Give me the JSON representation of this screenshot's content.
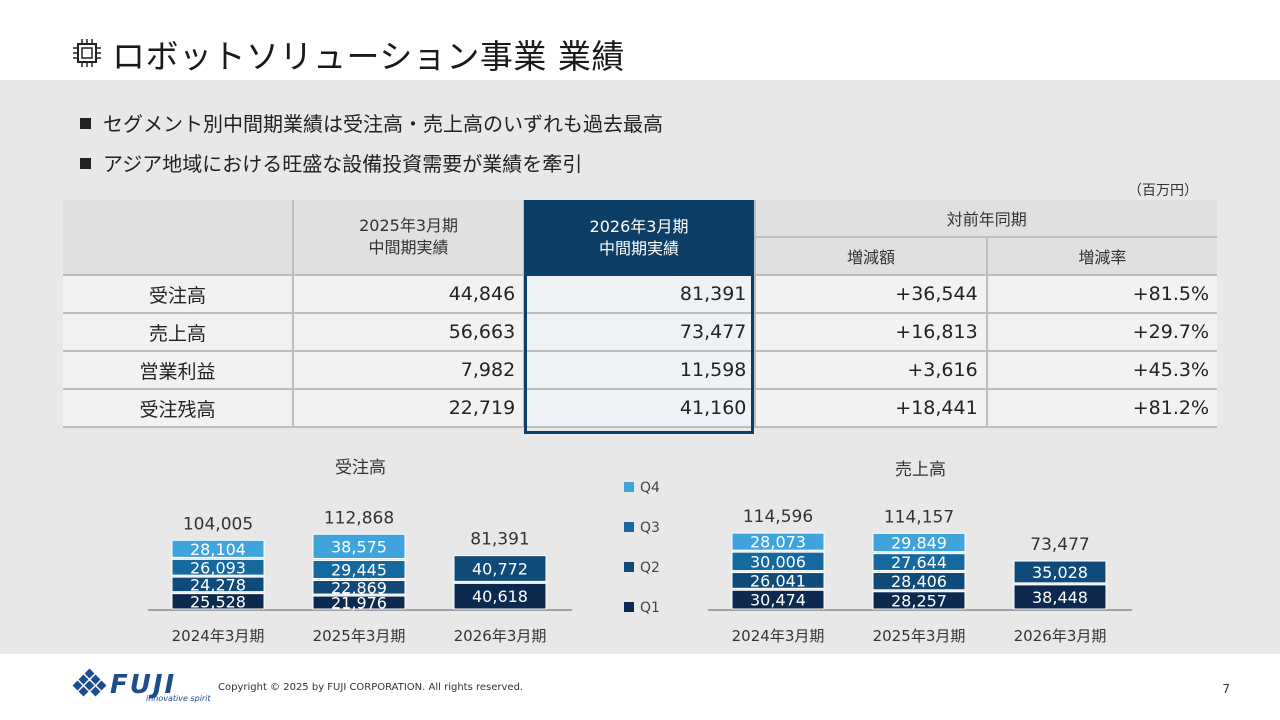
{
  "title": "ロボットソリューション事業 業績",
  "bullets": [
    "セグメント別中間期業績は受注高・売上高のいずれも過去最高",
    "アジア地域における旺盛な設備投資需要が業績を牽引"
  ],
  "unit": "（百万円）",
  "table": {
    "col_prev_line1": "2025年3月期",
    "col_prev_line2": "中間期実績",
    "col_curr_line1": "2026年3月期",
    "col_curr_line2": "中間期実績",
    "col_yoy": "対前年同期",
    "col_diff": "増減額",
    "col_rate": "増減率",
    "rows": [
      {
        "label": "受注高",
        "prev": "44,846",
        "curr": "81,391",
        "diff": "+36,544",
        "rate": "+81.5%"
      },
      {
        "label": "売上高",
        "prev": "56,663",
        "curr": "73,477",
        "diff": "+16,813",
        "rate": "+29.7%"
      },
      {
        "label": "営業利益",
        "prev": "7,982",
        "curr": "11,598",
        "diff": "+3,616",
        "rate": "+45.3%"
      },
      {
        "label": "受注残高",
        "prev": "22,719",
        "curr": "41,160",
        "diff": "+18,441",
        "rate": "+81.2%"
      }
    ]
  },
  "colors": {
    "Q1": "#0c2a4f",
    "Q2": "#0f4a78",
    "Q3": "#15699e",
    "Q4": "#3fa3dc",
    "highlight": "#0c3e66"
  },
  "chart_data": [
    {
      "type": "bar",
      "stacked": true,
      "title": "受注高",
      "categories": [
        "2024年3月期",
        "2025年3月期",
        "2026年3月期"
      ],
      "series": [
        {
          "name": "Q1",
          "values": [
            25528,
            21976,
            40618
          ]
        },
        {
          "name": "Q2",
          "values": [
            24278,
            22869,
            40772
          ]
        },
        {
          "name": "Q3",
          "values": [
            26093,
            29445,
            null
          ]
        },
        {
          "name": "Q4",
          "values": [
            28104,
            38575,
            null
          ]
        }
      ],
      "totals": [
        104005,
        112868,
        81391
      ],
      "labels": {
        "Q1": [
          "25,528",
          "21,976",
          "40,618"
        ],
        "Q2": [
          "24,278",
          "22,869",
          "40,772"
        ],
        "Q3": [
          "26,093",
          "29,445",
          ""
        ],
        "Q4": [
          "28,104",
          "38,575",
          ""
        ],
        "totals": [
          "104,005",
          "112,868",
          "81,391"
        ]
      }
    },
    {
      "type": "bar",
      "stacked": true,
      "title": "売上高",
      "categories": [
        "2024年3月期",
        "2025年3月期",
        "2026年3月期"
      ],
      "series": [
        {
          "name": "Q1",
          "values": [
            30474,
            28257,
            38448
          ]
        },
        {
          "name": "Q2",
          "values": [
            26041,
            28406,
            35028
          ]
        },
        {
          "name": "Q3",
          "values": [
            30006,
            27644,
            null
          ]
        },
        {
          "name": "Q4",
          "values": [
            28073,
            29849,
            null
          ]
        }
      ],
      "totals": [
        114596,
        114157,
        73477
      ],
      "labels": {
        "Q1": [
          "30,474",
          "28,257",
          "38,448"
        ],
        "Q2": [
          "26,041",
          "28,406",
          "35,028"
        ],
        "Q3": [
          "30,006",
          "27,644",
          ""
        ],
        "Q4": [
          "28,073",
          "29,849",
          ""
        ],
        "totals": [
          "114,596",
          "114,157",
          "73,477"
        ]
      }
    }
  ],
  "legend": [
    "Q4",
    "Q3",
    "Q2",
    "Q1"
  ],
  "footer": {
    "logo": "FUJI",
    "logo_sub": "innovative spirit",
    "copyright": "Copyright © 2025 by FUJI CORPORATION. All rights reserved.",
    "page": "7"
  }
}
